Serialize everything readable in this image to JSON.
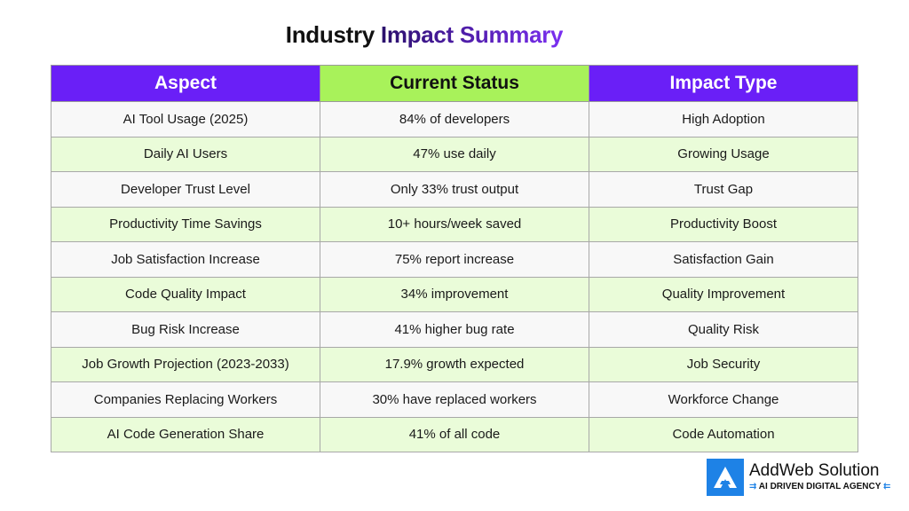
{
  "title": {
    "part1": "Industry",
    "part2": "Impact Summary"
  },
  "colors": {
    "header_purple": "#6a1ff7",
    "header_green": "#a8f25a",
    "row_green": "#eafcd9",
    "row_gray": "#f8f8f8",
    "brand_blue": "#1e82e6"
  },
  "table": {
    "headers": [
      "Aspect",
      "Current Status",
      "Impact Type"
    ],
    "rows": [
      [
        "AI Tool Usage (2025)",
        "84% of developers",
        "High Adoption"
      ],
      [
        "Daily AI Users",
        "47% use daily",
        "Growing Usage"
      ],
      [
        "Developer Trust Level",
        "Only 33% trust output",
        "Trust Gap"
      ],
      [
        "Productivity Time Savings",
        "10+ hours/week saved",
        "Productivity Boost"
      ],
      [
        "Job Satisfaction Increase",
        "75% report increase",
        "Satisfaction Gain"
      ],
      [
        "Code Quality Impact",
        "34% improvement",
        "Quality Improvement"
      ],
      [
        "Bug Risk Increase",
        "41% higher bug rate",
        "Quality Risk"
      ],
      [
        "Job Growth Projection (2023-2033)",
        "17.9% growth expected",
        "Job Security"
      ],
      [
        "Companies Replacing Workers",
        "30% have replaced workers",
        "Workforce Change"
      ],
      [
        "AI Code Generation Share",
        "41% of all code",
        "Code Automation"
      ]
    ]
  },
  "logo": {
    "name": "AddWeb Solution",
    "tagline": "AI DRIVEN DIGITAL AGENCY",
    "icon": "addweb-a-logo-icon"
  }
}
